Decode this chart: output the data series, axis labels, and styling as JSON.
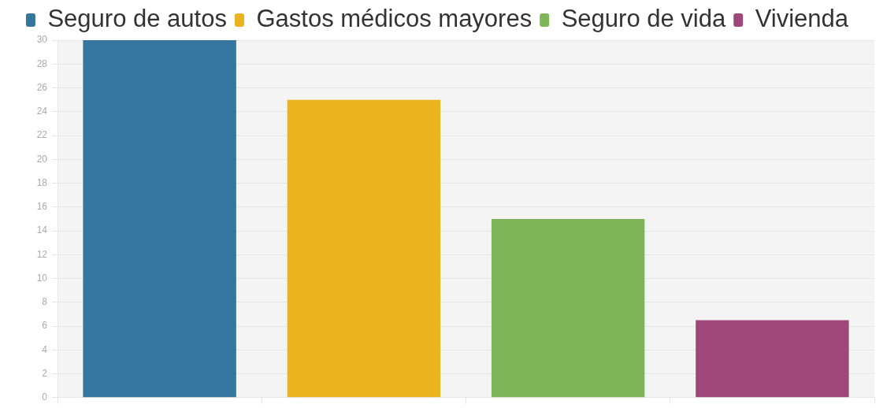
{
  "chart_data": {
    "type": "bar",
    "categories": [
      null,
      null,
      null,
      null
    ],
    "series": [
      {
        "name": "Seguro de autos",
        "color": "#34769e",
        "values": [
          30,
          null,
          null,
          null
        ]
      },
      {
        "name": "Gastos médicos mayores",
        "color": "#ecb320",
        "values": [
          null,
          25,
          null,
          null
        ]
      },
      {
        "name": "Seguro de vida",
        "color": "#80b65a",
        "values": [
          null,
          null,
          15,
          null
        ]
      },
      {
        "name": "Vivienda",
        "color": "#9e4879",
        "values": [
          null,
          null,
          null,
          6.5
        ]
      }
    ],
    "ylim": [
      0,
      30
    ],
    "yticks": [
      0,
      2,
      4,
      6,
      8,
      10,
      12,
      14,
      16,
      18,
      20,
      22,
      24,
      26,
      28,
      30
    ],
    "grid": "y",
    "legend": "top"
  }
}
